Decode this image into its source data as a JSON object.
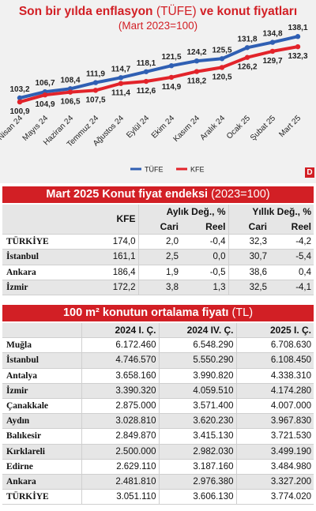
{
  "chart_data": {
    "type": "line",
    "title_bold_1": "Son bir yılda enflasyon",
    "title_light": "(TÜFE)",
    "title_bold_2": "ve konut fiyatları",
    "subtitle": "(Mart 2023=100)",
    "categories": [
      "Nisan 24",
      "Mayıs 24",
      "Haziran 24",
      "Temmuz 24",
      "Ağustos 24",
      "Eylül 24",
      "Ekim 24",
      "Kasım 24",
      "Aralık 24",
      "Ocak 25",
      "Şubat 25",
      "Mart 25"
    ],
    "series": [
      {
        "name": "TÜFE",
        "color": "#2f5fb3",
        "values": [
          103.2,
          106.7,
          108.4,
          111.9,
          114.7,
          118.1,
          121.5,
          124.2,
          125.5,
          131.8,
          134.8,
          138.1
        ],
        "labels": [
          "103,2",
          "106,7",
          "108,4",
          "111,9",
          "114,7",
          "118,1",
          "121,5",
          "124,2",
          "125,5",
          "131,8",
          "134,8",
          "138,1"
        ]
      },
      {
        "name": "KFE",
        "color": "#e2232a",
        "values": [
          100.9,
          104.9,
          106.5,
          107.5,
          111.4,
          112.6,
          114.9,
          118.2,
          120.5,
          126.2,
          129.7,
          132.3
        ],
        "labels": [
          "100,9",
          "104,9",
          "106,5",
          "107,5",
          "111,4",
          "112,6",
          "114,9",
          "118,2",
          "120,5",
          "126,2",
          "129,7",
          "132,3"
        ]
      }
    ],
    "ylim": [
      96,
      140
    ],
    "legend_position": "bottom-center"
  },
  "brand_mark": "D",
  "table1": {
    "title_bold": "Mart 2025 Konut fiyat endeksi",
    "title_light": "(2023=100)",
    "col_kfe": "KFE",
    "col_monthly": "Aylık Değ., %",
    "col_yearly": "Yıllık Değ., %",
    "col_cari": "Cari",
    "col_reel": "Reel",
    "rows": [
      {
        "city": "TÜRKİYE",
        "kfe": "174,0",
        "m_cari": "2,0",
        "m_reel": "-0,4",
        "y_cari": "32,3",
        "y_reel": "-4,2"
      },
      {
        "city": "İstanbul",
        "kfe": "161,1",
        "m_cari": "2,5",
        "m_reel": "0,0",
        "y_cari": "30,7",
        "y_reel": "-5,4"
      },
      {
        "city": "Ankara",
        "kfe": "186,4",
        "m_cari": "1,9",
        "m_reel": "-0,5",
        "y_cari": "38,6",
        "y_reel": "0,4"
      },
      {
        "city": "İzmir",
        "kfe": "172,2",
        "m_cari": "3,8",
        "m_reel": "1,3",
        "y_cari": "32,5",
        "y_reel": "-4,1"
      }
    ]
  },
  "table2": {
    "title_bold": "100 m² konutun ortalama fiyatı",
    "title_light": "(TL)",
    "col1": "2024 I. Ç.",
    "col2": "2024 IV. Ç.",
    "col3": "2025 I. Ç.",
    "rows": [
      {
        "city": "Muğla",
        "v1": "6.172.460",
        "v2": "6.548.290",
        "v3": "6.708.630"
      },
      {
        "city": "İstanbul",
        "v1": "4.746.570",
        "v2": "5.550.290",
        "v3": "6.108.450"
      },
      {
        "city": "Antalya",
        "v1": "3.658.160",
        "v2": "3.990.820",
        "v3": "4.338.310"
      },
      {
        "city": "İzmir",
        "v1": "3.390.320",
        "v2": "4.059.510",
        "v3": "4.174.280"
      },
      {
        "city": "Çanakkale",
        "v1": "2.875.000",
        "v2": "3.571.400",
        "v3": "4.007.000"
      },
      {
        "city": "Aydın",
        "v1": "3.028.810",
        "v2": "3.620.230",
        "v3": "3.967.830"
      },
      {
        "city": "Balıkesir",
        "v1": "2.849.870",
        "v2": "3.415.130",
        "v3": "3.721.530"
      },
      {
        "city": "Kırklareli",
        "v1": "2.500.000",
        "v2": "2.982.030",
        "v3": "3.499.190"
      },
      {
        "city": "Edirne",
        "v1": "2.629.110",
        "v2": "3.187.160",
        "v3": "3.484.980"
      },
      {
        "city": "Ankara",
        "v1": "2.481.810",
        "v2": "2.976.380",
        "v3": "3.327.200"
      },
      {
        "city": "TÜRKİYE",
        "v1": "3.051.110",
        "v2": "3.606.130",
        "v3": "3.774.020"
      }
    ]
  }
}
